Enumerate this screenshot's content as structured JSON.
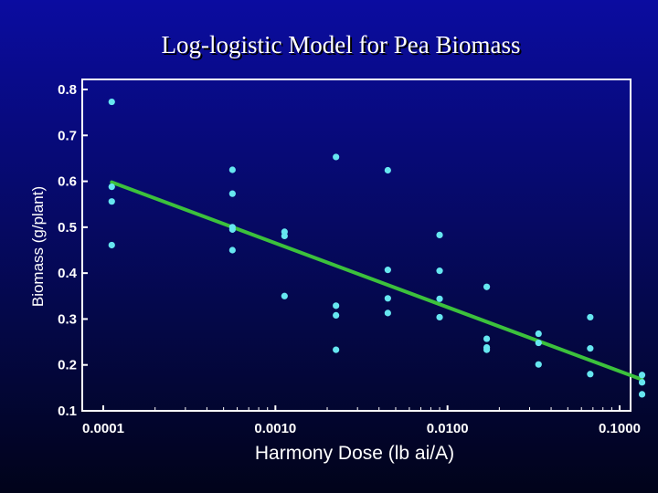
{
  "chart_data": {
    "type": "scatter",
    "title": "Log-logistic Model for Pea Biomass",
    "xlabel": "Harmony Dose (lb ai/A)",
    "ylabel": "Biomass (g/plant)",
    "x_scale": "log",
    "xlim": [
      0.0001,
      0.1
    ],
    "ylim": [
      0.1,
      0.8
    ],
    "xticks": [
      0.0001,
      0.001,
      0.01,
      0.1
    ],
    "xtick_labels": [
      "0.0001",
      "0.0010",
      "0.0100",
      "0.1000"
    ],
    "yticks": [
      0.1,
      0.2,
      0.3,
      0.4,
      0.5,
      0.6,
      0.7,
      0.8
    ],
    "ytick_labels": [
      "0.1",
      "0.2",
      "0.3",
      "0.4",
      "0.5",
      "0.6",
      "0.7",
      "0.8"
    ],
    "grid": false,
    "legend": null,
    "colors": {
      "points": "#66e6f0",
      "fit_line": "#3cc13c",
      "frame": "#ffffff"
    },
    "points": [
      {
        "x": 0.000112,
        "y": 0.773
      },
      {
        "x": 0.000112,
        "y": 0.588
      },
      {
        "x": 0.000112,
        "y": 0.556
      },
      {
        "x": 0.000112,
        "y": 0.461
      },
      {
        "x": 0.000563,
        "y": 0.625
      },
      {
        "x": 0.000563,
        "y": 0.573
      },
      {
        "x": 0.000563,
        "y": 0.5
      },
      {
        "x": 0.000563,
        "y": 0.495
      },
      {
        "x": 0.000563,
        "y": 0.45
      },
      {
        "x": 0.00113,
        "y": 0.49
      },
      {
        "x": 0.00113,
        "y": 0.481
      },
      {
        "x": 0.00113,
        "y": 0.35
      },
      {
        "x": 0.00225,
        "y": 0.653
      },
      {
        "x": 0.00225,
        "y": 0.329
      },
      {
        "x": 0.00225,
        "y": 0.308
      },
      {
        "x": 0.00225,
        "y": 0.233
      },
      {
        "x": 0.0045,
        "y": 0.624
      },
      {
        "x": 0.0045,
        "y": 0.407
      },
      {
        "x": 0.0045,
        "y": 0.345
      },
      {
        "x": 0.0045,
        "y": 0.313
      },
      {
        "x": 0.009,
        "y": 0.483
      },
      {
        "x": 0.009,
        "y": 0.405
      },
      {
        "x": 0.009,
        "y": 0.344
      },
      {
        "x": 0.009,
        "y": 0.304
      },
      {
        "x": 0.0169,
        "y": 0.37
      },
      {
        "x": 0.0169,
        "y": 0.257
      },
      {
        "x": 0.0169,
        "y": 0.238
      },
      {
        "x": 0.0169,
        "y": 0.233
      },
      {
        "x": 0.0338,
        "y": 0.268
      },
      {
        "x": 0.0338,
        "y": 0.248
      },
      {
        "x": 0.0338,
        "y": 0.201
      },
      {
        "x": 0.0675,
        "y": 0.304
      },
      {
        "x": 0.0675,
        "y": 0.236
      },
      {
        "x": 0.0675,
        "y": 0.18
      },
      {
        "x": 0.135,
        "y": 0.178
      },
      {
        "x": 0.135,
        "y": 0.162
      },
      {
        "x": 0.135,
        "y": 0.136
      }
    ],
    "fit_line": [
      {
        "x": 0.000112,
        "y": 0.598
      },
      {
        "x": 0.135,
        "y": 0.168
      }
    ]
  }
}
